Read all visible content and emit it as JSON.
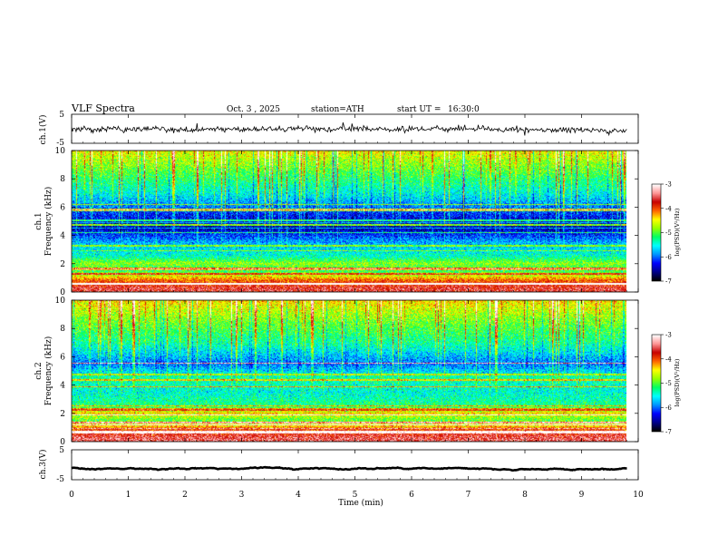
{
  "header": {
    "title": "VLF Spectra",
    "date": "Oct. 3 , 2025",
    "station": "station=ATH",
    "start_label": "start UT =",
    "start_time": "16:30:0"
  },
  "colors": {
    "spectrogram_scale": [
      "#000000",
      "#00008b",
      "#0000ff",
      "#0096ff",
      "#00ffff",
      "#00ff64",
      "#96ff00",
      "#ffff00",
      "#ff6400",
      "#c80000",
      "#ff9696",
      "#ffffff"
    ],
    "waveform": "#000000",
    "axis": "#000000"
  },
  "chart_data": [
    {
      "type": "line",
      "name": "ch1-waveform",
      "ylabel": "ch.1(V)",
      "ylim": [
        -5,
        5
      ],
      "yticks": [
        "5",
        "-5"
      ],
      "xlim": [
        0,
        10
      ],
      "trace_end_min": 9.8,
      "approx_level_V": [
        0.0,
        -0.5
      ],
      "noise_amplitude_V": 2.5
    },
    {
      "type": "heatmap",
      "name": "ch1-spectrogram",
      "ylabel": "ch.1\nFrequency (kHz)",
      "ylabel_lines": [
        "ch.1",
        "Frequency (kHz)"
      ],
      "ylim": [
        0,
        10
      ],
      "yticks": [
        "10",
        "8",
        "6",
        "4",
        "2",
        "0"
      ],
      "xlim": [
        0,
        10
      ],
      "data_end_min": 9.8,
      "colorbar": {
        "label": "log(PSD)(V²/Hz)",
        "range": [
          -7,
          -3
        ],
        "ticks": [
          "-3",
          "-4",
          "-5",
          "-6",
          "-7"
        ]
      },
      "spectral_profile": [
        {
          "f_kHz": 0.2,
          "log_psd": -3.6
        },
        {
          "f_kHz": 0.8,
          "log_psd": -4.0
        },
        {
          "f_kHz": 1.5,
          "log_psd": -5.2
        },
        {
          "f_kHz": 2.0,
          "log_psd": -4.8
        },
        {
          "f_kHz": 2.5,
          "log_psd": -5.4
        },
        {
          "f_kHz": 3.5,
          "log_psd": -5.8
        },
        {
          "f_kHz": 4.5,
          "log_psd": -6.5
        },
        {
          "f_kHz": 5.5,
          "log_psd": -6.2
        },
        {
          "f_kHz": 7.0,
          "log_psd": -5.5
        },
        {
          "f_kHz": 8.5,
          "log_psd": -5.0
        },
        {
          "f_kHz": 10.0,
          "log_psd": -4.5
        }
      ]
    },
    {
      "type": "heatmap",
      "name": "ch2-spectrogram",
      "ylabel": "ch.2\nFrequency (kHz)",
      "ylabel_lines": [
        "ch.2",
        "Frequency (kHz)"
      ],
      "ylim": [
        0,
        10
      ],
      "yticks": [
        "10",
        "8",
        "6",
        "4",
        "2",
        "0"
      ],
      "xlim": [
        0,
        10
      ],
      "data_end_min": 9.8,
      "colorbar": {
        "label": "log(PSD)(V²/Hz)",
        "range": [
          -7,
          -3
        ],
        "ticks": [
          "-3",
          "-4",
          "-5",
          "-6",
          "-7"
        ]
      },
      "spectral_profile": [
        {
          "f_kHz": 0.2,
          "log_psd": -3.5
        },
        {
          "f_kHz": 0.8,
          "log_psd": -3.9
        },
        {
          "f_kHz": 1.5,
          "log_psd": -5.0
        },
        {
          "f_kHz": 2.0,
          "log_psd": -4.4
        },
        {
          "f_kHz": 2.5,
          "log_psd": -5.2
        },
        {
          "f_kHz": 3.5,
          "log_psd": -5.5
        },
        {
          "f_kHz": 4.5,
          "log_psd": -5.3
        },
        {
          "f_kHz": 5.5,
          "log_psd": -6.0
        },
        {
          "f_kHz": 7.0,
          "log_psd": -5.3
        },
        {
          "f_kHz": 8.5,
          "log_psd": -4.9
        },
        {
          "f_kHz": 10.0,
          "log_psd": -4.4
        }
      ]
    },
    {
      "type": "line",
      "name": "ch3-waveform",
      "ylabel": "ch.3(V)",
      "ylim": [
        -5,
        5
      ],
      "yticks": [
        "5",
        "-5"
      ],
      "xlim": [
        0,
        10
      ],
      "trace_end_min": 9.8,
      "approx_level_V": [
        -1.2,
        -1.2
      ],
      "noise_amplitude_V": 0.15
    }
  ],
  "x_axis": {
    "label": "Time (min)",
    "ticks": [
      "0",
      "1",
      "2",
      "3",
      "4",
      "5",
      "6",
      "7",
      "8",
      "9",
      "10"
    ]
  }
}
